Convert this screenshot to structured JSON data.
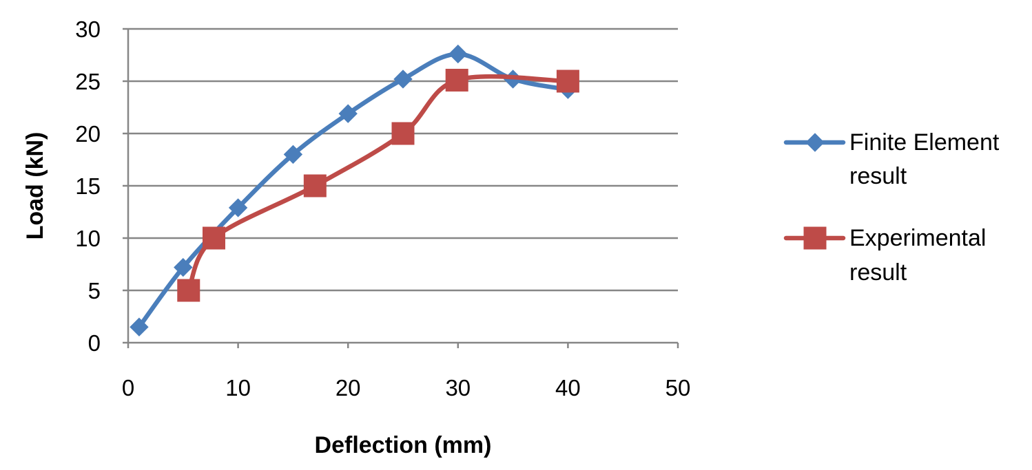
{
  "chart_data": {
    "type": "line",
    "title": "",
    "xlabel": "Deflection (mm)",
    "ylabel": "Load (kN)",
    "xlim": [
      0,
      50
    ],
    "ylim": [
      0,
      30
    ],
    "x_ticks": [
      0,
      10,
      20,
      30,
      40,
      50
    ],
    "y_ticks": [
      0,
      5,
      10,
      15,
      20,
      25,
      30
    ],
    "grid": "horizontal",
    "smooth": true,
    "legend_position": "right",
    "series": [
      {
        "name": "Finite Element result",
        "legend_lines": [
          "Finite Element",
          "result"
        ],
        "color": "#4A7EBB",
        "marker": "diamond",
        "points": [
          {
            "x": 1,
            "y": 1.5
          },
          {
            "x": 5,
            "y": 7.2
          },
          {
            "x": 10,
            "y": 12.9
          },
          {
            "x": 15,
            "y": 18
          },
          {
            "x": 20,
            "y": 21.9
          },
          {
            "x": 25,
            "y": 25.2
          },
          {
            "x": 30,
            "y": 27.6
          },
          {
            "x": 35,
            "y": 25.2
          },
          {
            "x": 40,
            "y": 24.2
          }
        ]
      },
      {
        "name": "Experimental result",
        "legend_lines": [
          "Experimental",
          "result"
        ],
        "color": "#BE4B48",
        "marker": "square",
        "points": [
          {
            "x": 5.5,
            "y": 5
          },
          {
            "x": 7.8,
            "y": 10
          },
          {
            "x": 17,
            "y": 15
          },
          {
            "x": 25,
            "y": 20
          },
          {
            "x": 29.9,
            "y": 25.1
          },
          {
            "x": 40,
            "y": 25
          }
        ]
      }
    ]
  }
}
